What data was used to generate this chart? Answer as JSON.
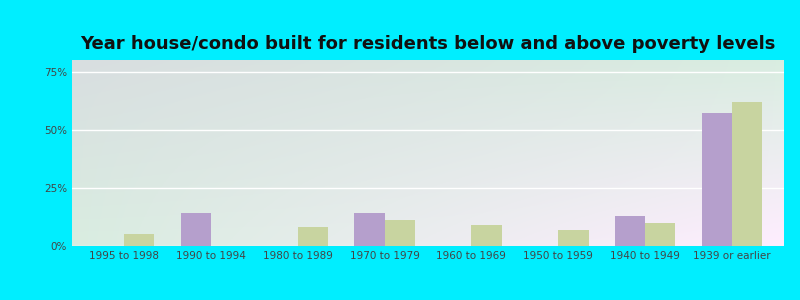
{
  "title": "Year house/condo built for residents below and above poverty levels",
  "categories": [
    "1995 to 1998",
    "1990 to 1994",
    "1980 to 1989",
    "1970 to 1979",
    "1960 to 1969",
    "1950 to 1959",
    "1940 to 1949",
    "1939 or earlier"
  ],
  "below_poverty": [
    0.0,
    14.0,
    0.0,
    14.0,
    0.0,
    0.0,
    13.0,
    57.0
  ],
  "above_poverty": [
    5.0,
    0.0,
    8.0,
    11.0,
    9.0,
    7.0,
    10.0,
    62.0
  ],
  "below_color": "#b59fcc",
  "above_color": "#c8d4a0",
  "ylim": [
    0,
    80
  ],
  "yticks": [
    0,
    25,
    50,
    75
  ],
  "ytick_labels": [
    "0%",
    "25%",
    "50%",
    "75%"
  ],
  "outer_bg_color": "#00eeff",
  "bar_width": 0.35,
  "title_fontsize": 13,
  "tick_fontsize": 7.5,
  "legend_fontsize": 9.5
}
